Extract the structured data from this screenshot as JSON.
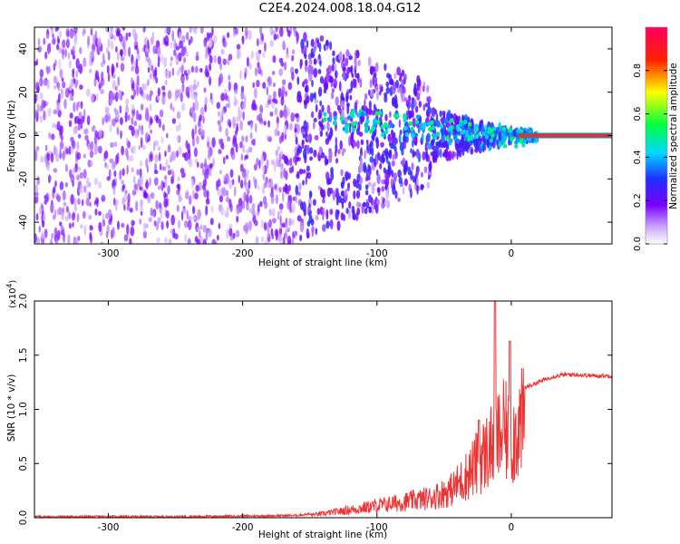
{
  "title": "C2E4.2024.008.18.04.G12",
  "chart_data": [
    {
      "type": "heatmap",
      "xlabel": "Height of straight line (km)",
      "ylabel": "Frequency (Hz)",
      "xlim": [
        -355,
        75
      ],
      "ylim": [
        -50,
        50
      ],
      "x_ticks": [
        "-300",
        "-200",
        "-100",
        "0"
      ],
      "y_ticks": [
        "-40",
        "-20",
        "0",
        "20",
        "40"
      ],
      "colorbar": {
        "label": "Normalized spectral amplitude",
        "range": [
          0,
          1
        ],
        "ticks": [
          "0.0",
          "0.2",
          "0.4",
          "0.6",
          "0.8"
        ],
        "colormap": "rainbow (white - purple - blue - cyan - green - yellow - red - magenta)",
        "colors": [
          "#ffffff",
          "#7a00ff",
          "#2030ff",
          "#00e0ff",
          "#00ff40",
          "#ffff00",
          "#ff2000",
          "#ff0060"
        ]
      },
      "features": {
        "line_frequency_hz": 0,
        "line_start_km": 5,
        "scatter_extent_km": [
          -355,
          20
        ]
      }
    },
    {
      "type": "line",
      "xlabel": "Height of straight line (km)",
      "ylabel": "SNR (10 * v/v)",
      "y_scale_label": "(x10",
      "y_scale_exponent": "4",
      "xlim": [
        -355,
        75
      ],
      "ylim": [
        0,
        2.0
      ],
      "x_ticks": [
        "-300",
        "-200",
        "-100",
        "0"
      ],
      "y_ticks": [
        "0.0",
        "0.5",
        "1.0",
        "1.5",
        "2.0"
      ],
      "line_color": "#ee3333",
      "series": [
        {
          "x": [
            -355,
            -300,
            -250,
            -200,
            -160,
            -140,
            -120,
            -100,
            -80,
            -60,
            -45,
            -35,
            -25,
            -15,
            -10,
            -5,
            0,
            5,
            10,
            20,
            30,
            40,
            50,
            60,
            75
          ],
          "y": [
            0.01,
            0.01,
            0.01,
            0.015,
            0.02,
            0.05,
            0.1,
            0.15,
            0.2,
            0.25,
            0.35,
            0.5,
            0.7,
            0.9,
            1.0,
            1.1,
            0.95,
            1.15,
            1.2,
            1.25,
            1.3,
            1.32,
            1.32,
            1.31,
            1.31
          ]
        }
      ],
      "peaks": [
        {
          "x": -12,
          "y": 2.0
        },
        {
          "x": -1,
          "y": 1.63
        },
        {
          "x": -24,
          "y": 0.9
        }
      ]
    }
  ]
}
